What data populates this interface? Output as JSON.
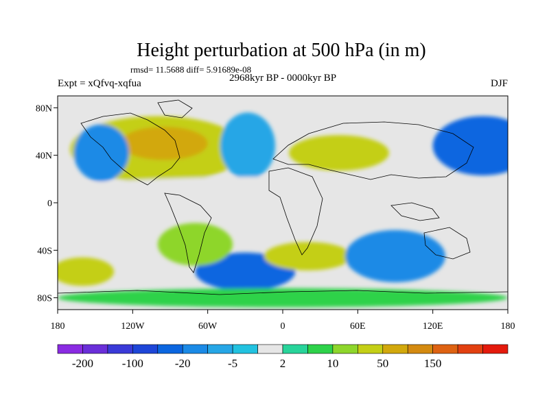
{
  "chart_data": {
    "type": "heatmap",
    "title": "Height perturbation at 500 hPa (in m)",
    "stats_line": "rmsd= 11.5688  diff= 5.91689e-08",
    "period_line": "2968kyr BP - 0000kyr BP",
    "left_label": "Expt = xQfvq-xqfua",
    "right_label": "DJF",
    "x_range": [
      -180,
      180
    ],
    "y_range": [
      -90,
      90
    ],
    "x_ticks": [
      {
        "value": -180,
        "label": "180"
      },
      {
        "value": -120,
        "label": "120W"
      },
      {
        "value": -60,
        "label": "60W"
      },
      {
        "value": 0,
        "label": "0"
      },
      {
        "value": 60,
        "label": "60E"
      },
      {
        "value": 120,
        "label": "120E"
      },
      {
        "value": 180,
        "label": "180"
      }
    ],
    "y_ticks": [
      {
        "value": 80,
        "label": "80N"
      },
      {
        "value": 40,
        "label": "40N"
      },
      {
        "value": 0,
        "label": "0"
      },
      {
        "value": -40,
        "label": "40S"
      },
      {
        "value": -80,
        "label": "80S"
      }
    ],
    "colorbar": {
      "colors": [
        "#8a2be2",
        "#6a2fd9",
        "#3a3ad8",
        "#1e46d8",
        "#0b66e0",
        "#1b8ae6",
        "#26a6e6",
        "#22c2e0",
        "#e6e6e6",
        "#28d49a",
        "#2ed24a",
        "#8ed62c",
        "#c4cf16",
        "#d2a80c",
        "#d48a10",
        "#de6212",
        "#e24010",
        "#e41a0c"
      ],
      "tick_labels": [
        {
          "index": 1,
          "label": "-200"
        },
        {
          "index": 3,
          "label": "-100"
        },
        {
          "index": 5,
          "label": "-20"
        },
        {
          "index": 7,
          "label": "-5"
        },
        {
          "index": 9,
          "label": "2"
        },
        {
          "index": 11,
          "label": "10"
        },
        {
          "index": 13,
          "label": "50"
        },
        {
          "index": 15,
          "label": "150"
        }
      ]
    },
    "field_regions": [
      {
        "name": "north-america-high",
        "lon": -100,
        "lat": 45,
        "rlon": 70,
        "rlat": 28,
        "value": 40
      },
      {
        "name": "north-america-core",
        "lon": -95,
        "lat": 50,
        "rlon": 35,
        "rlat": 14,
        "value": 60
      },
      {
        "name": "north-atlantic-low",
        "lon": -28,
        "lat": 48,
        "rlon": 22,
        "rlat": 28,
        "value": -10
      },
      {
        "name": "eurasia-high",
        "lon": 45,
        "lat": 42,
        "rlon": 40,
        "rlat": 15,
        "value": 30
      },
      {
        "name": "north-pacific-low",
        "lon": 160,
        "lat": 48,
        "rlon": 40,
        "rlat": 25,
        "value": -30
      },
      {
        "name": "central-pacific-low",
        "lon": -145,
        "lat": 42,
        "rlon": 22,
        "rlat": 24,
        "value": -20
      },
      {
        "name": "tropical-band",
        "lon": 0,
        "lat": 10,
        "rlon": 180,
        "rlat": 12,
        "value": 0
      },
      {
        "name": "southern-ocean-low-atlantic",
        "lon": -30,
        "lat": -58,
        "rlon": 40,
        "rlat": 16,
        "value": -40
      },
      {
        "name": "south-atlantic-high",
        "lon": 20,
        "lat": -45,
        "rlon": 35,
        "rlat": 12,
        "value": 40
      },
      {
        "name": "south-america-high",
        "lon": -70,
        "lat": -35,
        "rlon": 30,
        "rlat": 18,
        "value": 10
      },
      {
        "name": "southern-indian-low",
        "lon": 90,
        "lat": -45,
        "rlon": 40,
        "rlat": 22,
        "value": -15
      },
      {
        "name": "south-pacific-high",
        "lon": -160,
        "lat": -58,
        "rlon": 25,
        "rlat": 12,
        "value": 35
      },
      {
        "name": "antarctic-band",
        "lon": 0,
        "lat": -80,
        "rlon": 180,
        "rlat": 8,
        "value": 5
      }
    ]
  }
}
